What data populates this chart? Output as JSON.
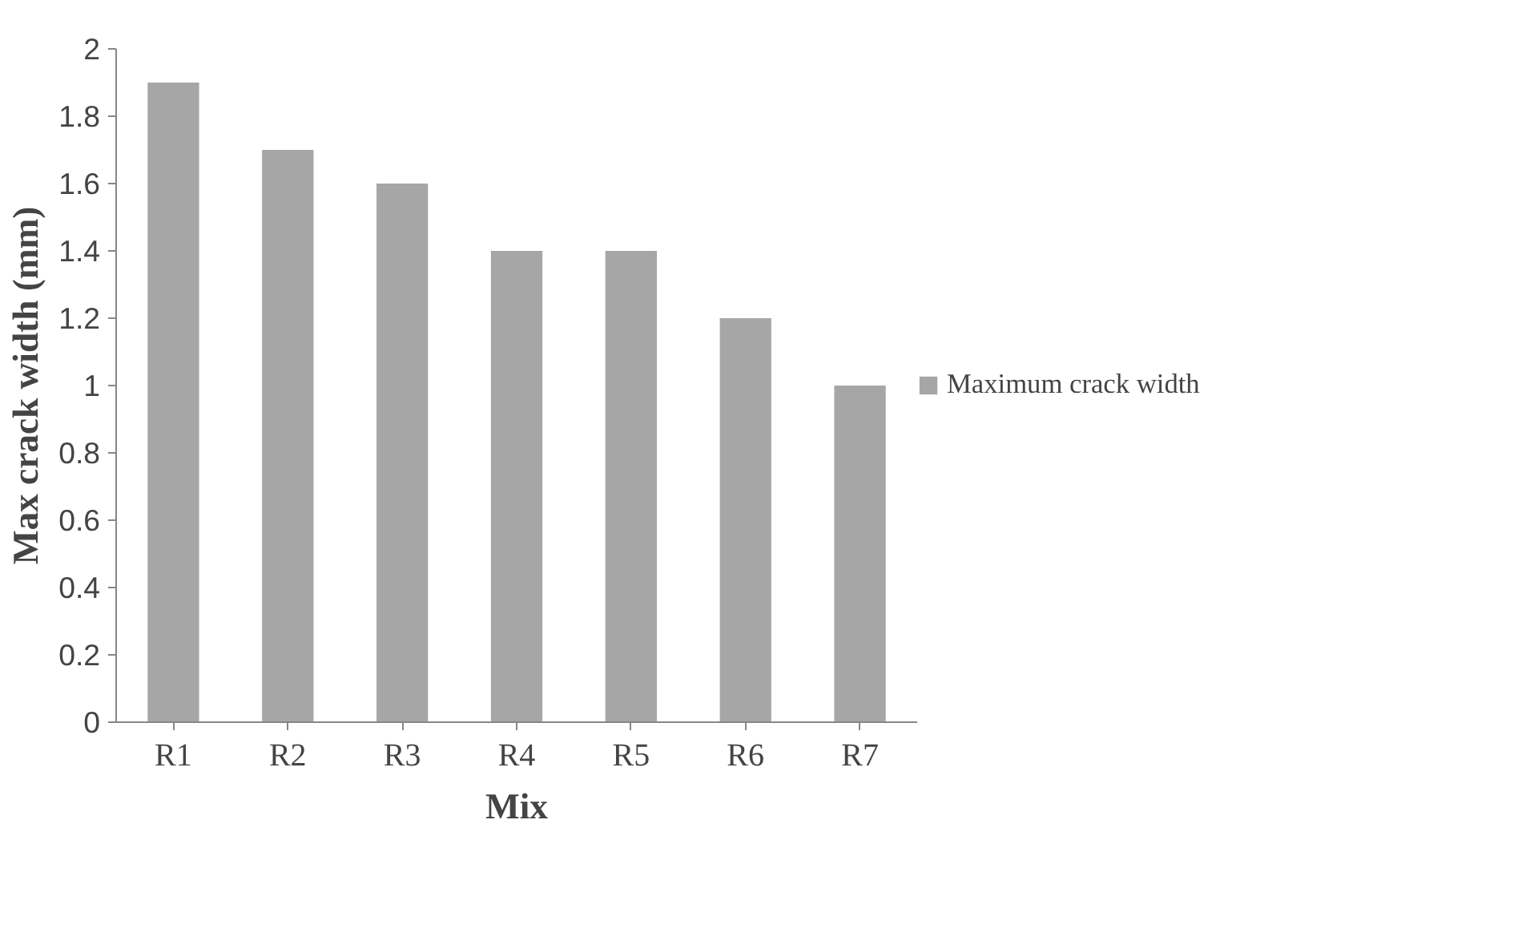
{
  "chart_data": {
    "type": "bar",
    "xlabel": "Mix",
    "ylabel": "Max crack width (mm)",
    "categories": [
      "R1",
      "R2",
      "R3",
      "R4",
      "R5",
      "R6",
      "R7"
    ],
    "series": [
      {
        "name": "Maximum crack width",
        "color": "#a6a6a6",
        "values": [
          1.9,
          1.7,
          1.6,
          1.4,
          1.4,
          1.2,
          1.0
        ]
      }
    ],
    "ylim": [
      0,
      2
    ],
    "yticks": [
      0,
      0.2,
      0.4,
      0.6,
      0.8,
      1,
      1.2,
      1.4,
      1.6,
      1.8,
      2
    ],
    "grid": false,
    "legend": "right"
  }
}
